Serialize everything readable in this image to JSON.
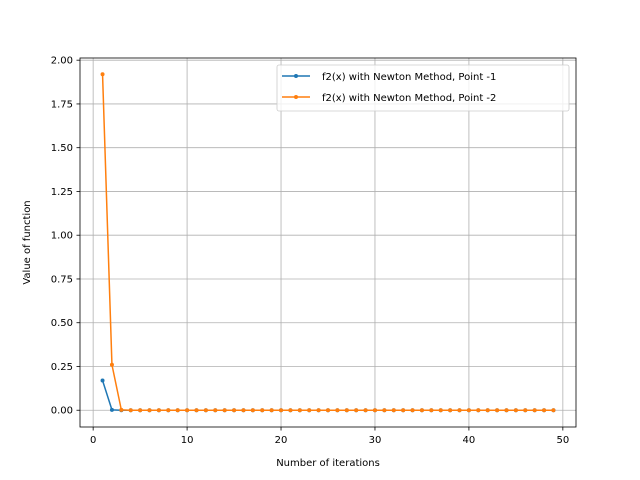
{
  "chart_data": {
    "type": "line",
    "title": "",
    "xlabel": "Number of iterations",
    "ylabel": "Value of function",
    "xlim": [
      -1.4,
      51.4
    ],
    "ylim": [
      -0.0958,
      2.0125
    ],
    "xticks": [
      0,
      10,
      20,
      30,
      40,
      50
    ],
    "yticks": [
      0.0,
      0.25,
      0.5,
      0.75,
      1.0,
      1.25,
      1.5,
      1.75,
      2.0
    ],
    "xtick_labels": [
      "0",
      "10",
      "20",
      "30",
      "40",
      "50"
    ],
    "ytick_labels": [
      "0.00",
      "0.25",
      "0.50",
      "0.75",
      "1.00",
      "1.25",
      "1.50",
      "1.75",
      "2.00"
    ],
    "grid": true,
    "legend_position": "top-right",
    "x": [
      1,
      2,
      3,
      4,
      5,
      6,
      7,
      8,
      9,
      10,
      11,
      12,
      13,
      14,
      15,
      16,
      17,
      18,
      19,
      20,
      21,
      22,
      23,
      24,
      25,
      26,
      27,
      28,
      29,
      30,
      31,
      32,
      33,
      34,
      35,
      36,
      37,
      38,
      39,
      40,
      41,
      42,
      43,
      44,
      45,
      46,
      47,
      48,
      49
    ],
    "series": [
      {
        "name": "f2(x) with Newton Method, Point -1",
        "color": "#1f77b4",
        "values": [
          0.17,
          0.002,
          0,
          0,
          0,
          0,
          0,
          0,
          0,
          0,
          0,
          0,
          0,
          0,
          0,
          0,
          0,
          0,
          0,
          0,
          0,
          0,
          0,
          0,
          0,
          0,
          0,
          0,
          0,
          0,
          0,
          0,
          0,
          0,
          0,
          0,
          0,
          0,
          0,
          0,
          0,
          0,
          0,
          0,
          0,
          0,
          0,
          0,
          0
        ]
      },
      {
        "name": "f2(x) with Newton Method, Point -2",
        "color": "#ff7f0e",
        "values": [
          1.92,
          0.26,
          0.002,
          0,
          0,
          0,
          0,
          0,
          0,
          0,
          0,
          0,
          0,
          0,
          0,
          0,
          0,
          0,
          0,
          0,
          0,
          0,
          0,
          0,
          0,
          0,
          0,
          0,
          0,
          0,
          0,
          0,
          0,
          0,
          0,
          0,
          0,
          0,
          0,
          0,
          0,
          0,
          0,
          0,
          0,
          0,
          0,
          0,
          0
        ]
      }
    ]
  }
}
